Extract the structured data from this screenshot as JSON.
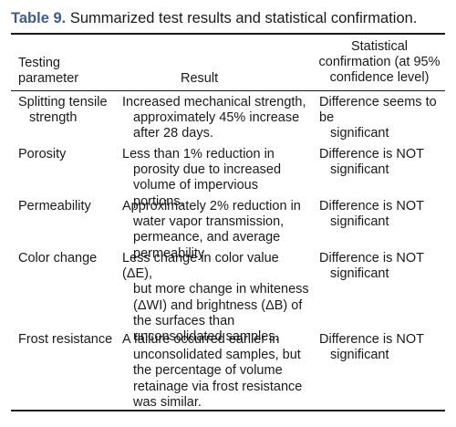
{
  "caption": {
    "label": "Table 9.",
    "text": "Summarized test results and statistical confirmation."
  },
  "headers": {
    "param_line1": "Testing",
    "param_line2": "parameter",
    "result": "Result",
    "stat_line1": "Statistical",
    "stat_line2": "confirmation (at 95%",
    "stat_line3": "confidence level)"
  },
  "rows": [
    {
      "parameter": [
        "Splitting tensile",
        "strength"
      ],
      "result": [
        "Increased mechanical strength,",
        "approximately 45% increase",
        "after 28 days."
      ],
      "statistical": [
        "Difference seems to be",
        "significant"
      ]
    },
    {
      "parameter": [
        "Porosity"
      ],
      "result": [
        "Less than 1% reduction in",
        "porosity due to increased",
        "volume of impervious portions."
      ],
      "statistical": [
        "Difference is NOT",
        "significant"
      ]
    },
    {
      "parameter": [
        "Permeability"
      ],
      "result": [
        "Approximately 2% reduction in",
        "water vapor transmission,",
        "permeance, and average",
        "permeability."
      ],
      "statistical": [
        "Difference is NOT",
        "significant"
      ]
    },
    {
      "parameter": [
        "Color change"
      ],
      "result": [
        "Less change in color value (ΔE),",
        "but more change in whiteness",
        "(ΔWI) and brightness (ΔB) of",
        "the surfaces than",
        "unconsolidated samples."
      ],
      "statistical": [
        "Difference is NOT",
        "significant"
      ]
    },
    {
      "parameter": [
        "Frost resistance"
      ],
      "result": [
        "A failure occurred earlier in",
        "unconsolidated samples, but",
        "the percentage of volume",
        "retainage via frost resistance",
        "was similar."
      ],
      "statistical": [
        "Difference is NOT",
        "significant"
      ]
    }
  ]
}
